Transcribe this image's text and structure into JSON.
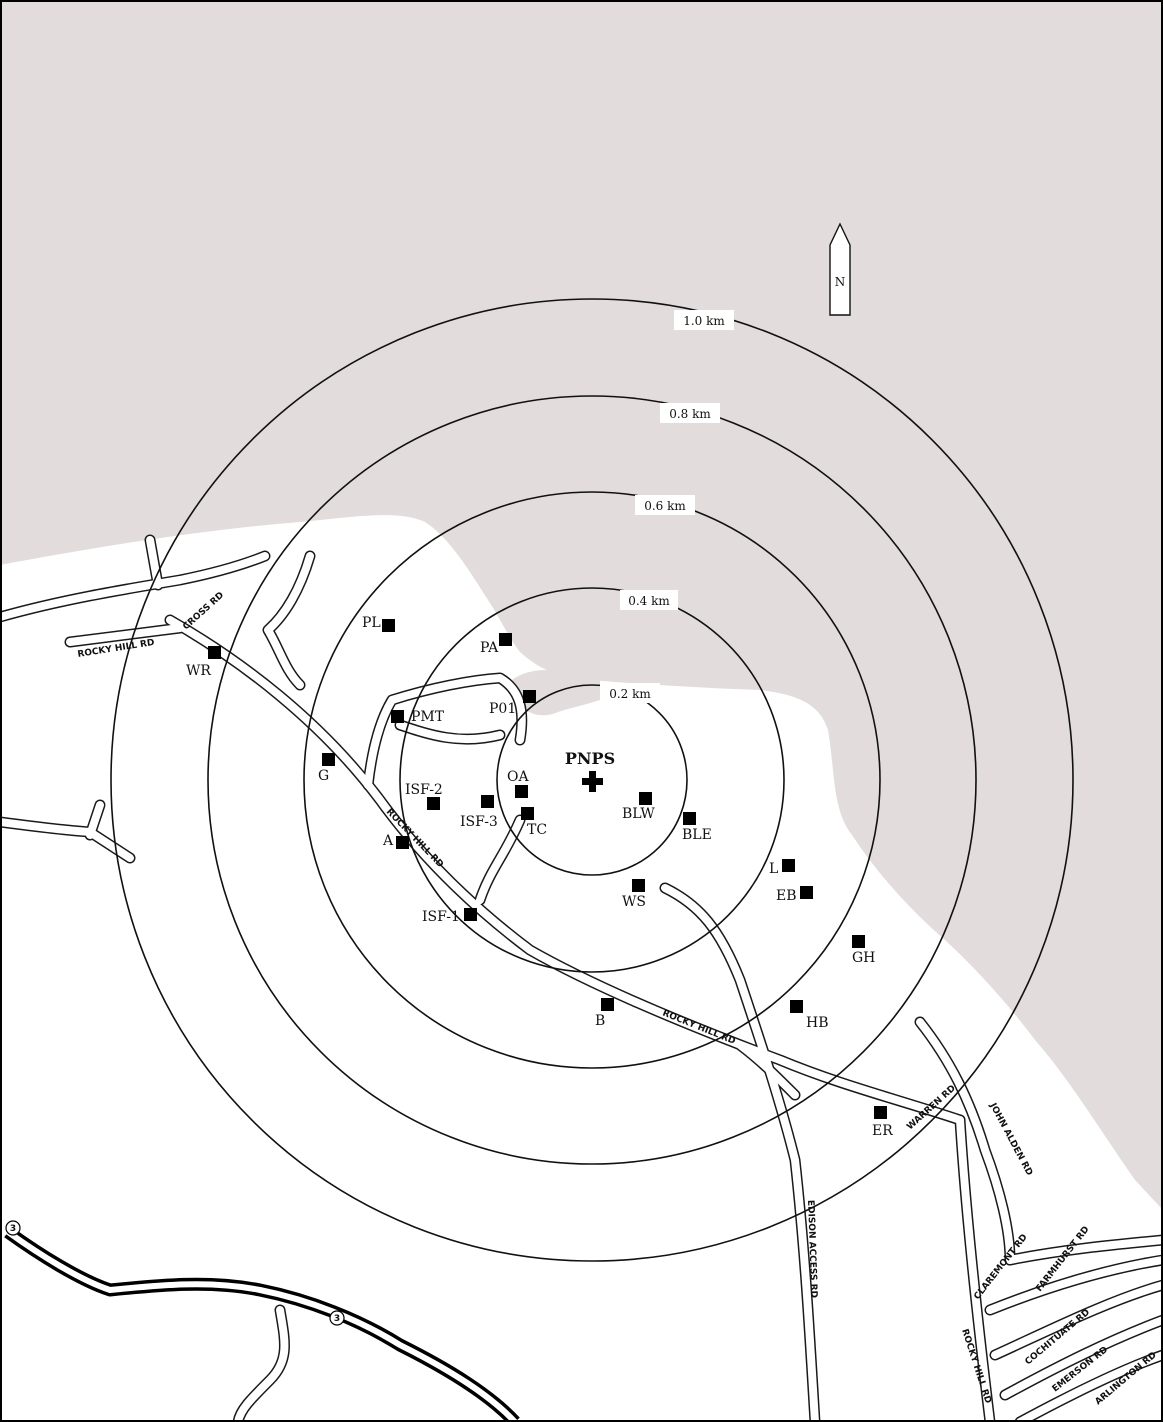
{
  "colors": {
    "water": "#e2dcdc",
    "land": "#ffffff",
    "ink": "#111111"
  },
  "north_arrow": {
    "label": "N"
  },
  "center": {
    "label": "PNPS"
  },
  "rings": [
    {
      "label": "0.2 km"
    },
    {
      "label": "0.4 km"
    },
    {
      "label": "0.6 km"
    },
    {
      "label": "0.8 km"
    },
    {
      "label": "1.0 km"
    }
  ],
  "stations": [
    {
      "label": "PL"
    },
    {
      "label": "PA"
    },
    {
      "label": "WR"
    },
    {
      "label": "P01"
    },
    {
      "label": "PMT"
    },
    {
      "label": "G"
    },
    {
      "label": "ISF-2"
    },
    {
      "label": "ISF-3"
    },
    {
      "label": "OA"
    },
    {
      "label": "TC"
    },
    {
      "label": "BLW"
    },
    {
      "label": "BLE"
    },
    {
      "label": "A"
    },
    {
      "label": "L"
    },
    {
      "label": "EB"
    },
    {
      "label": "WS"
    },
    {
      "label": "ISF-1"
    },
    {
      "label": "GH"
    },
    {
      "label": "B"
    },
    {
      "label": "HB"
    },
    {
      "label": "ER"
    }
  ],
  "roads": {
    "rocky_hill_west": "ROCKY HILL RD",
    "cross": "CROSS RD",
    "rocky_hill_mid": "ROCKY HILL RD",
    "rocky_hill_east": "ROCKY HILL RD",
    "warren": "WARREN RD",
    "edison": "EDISON ACCESS RD",
    "john_alden": "JOHN ALDEN RD",
    "claremont": "CLAREMONT RD",
    "farmhurst": "FARMHURST RD",
    "cochituate": "COCHITUATE RD",
    "emerson": "EMERSON RD",
    "arlington": "ARLINGTON RD",
    "rocky_hill_se": "ROCKY HILL RD",
    "route_a": "3",
    "route_b": "3"
  }
}
